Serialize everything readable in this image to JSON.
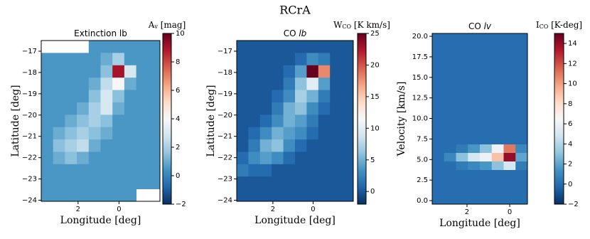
{
  "suptitle": "RCrA",
  "chart_data": [
    {
      "type": "heatmap",
      "title": "Extinction lb",
      "xlabel": "Longitude [deg]",
      "ylabel": "Latitude [deg]",
      "xlim": [
        3.8,
        -2.0
      ],
      "ylim": [
        -24.05,
        -16.5
      ],
      "xticks": [
        2,
        0
      ],
      "yticks": [
        {
          "value": -17,
          "label": "−17"
        },
        {
          "value": -18,
          "label": "−18"
        },
        {
          "value": -19,
          "label": "−19"
        },
        {
          "value": -20,
          "label": "−20"
        },
        {
          "value": -21,
          "label": "−21"
        },
        {
          "value": -22,
          "label": "−22"
        },
        {
          "value": -23,
          "label": "−23"
        },
        {
          "value": -24,
          "label": "−24"
        }
      ],
      "colormap": "RdBu_r",
      "clim": [
        -2,
        10
      ],
      "cticks": [
        {
          "value": -2,
          "label": "−2"
        },
        0,
        2,
        4,
        6,
        8,
        10
      ],
      "clabel": {
        "main": "A",
        "sub": "v",
        "unit": " [mag]"
      },
      "z": [
        [
          null,
          null,
          null,
          null,
          0.5,
          0.5,
          0.5,
          0.5,
          0.5,
          0.5
        ],
        [
          0.5,
          0.5,
          0.5,
          0.5,
          0.5,
          1,
          2,
          0.5,
          0.5,
          0.5
        ],
        [
          0.5,
          0.5,
          0.5,
          0.5,
          0.5,
          1.5,
          9,
          3,
          0.5,
          0.5
        ],
        [
          0.5,
          0.5,
          0.5,
          0.5,
          1,
          2.5,
          4,
          1,
          0.5,
          0.5
        ],
        [
          0.5,
          0.5,
          0.5,
          0.5,
          1.5,
          3,
          1.5,
          0.5,
          0.5,
          0.5
        ],
        [
          0.5,
          0.5,
          0.5,
          1,
          2,
          3,
          1,
          0.5,
          0.5,
          0.5
        ],
        [
          0.5,
          0.5,
          1,
          1.5,
          2,
          1.5,
          0.5,
          0.5,
          0.5,
          0.5
        ],
        [
          0.5,
          1,
          1.5,
          2,
          1.5,
          1,
          0.5,
          0.5,
          0.5,
          0.5
        ],
        [
          0.5,
          1.5,
          2,
          2.5,
          1,
          0.5,
          0.5,
          0.5,
          0.5,
          0.5
        ],
        [
          0.5,
          1,
          1.5,
          1,
          0.5,
          0.5,
          0.5,
          0.5,
          0.5,
          0.5
        ],
        [
          0.5,
          0.5,
          0.5,
          0.5,
          0.5,
          0.5,
          0.5,
          0.5,
          0.5,
          0.5
        ],
        [
          0.5,
          0.5,
          0.5,
          0.5,
          0.5,
          0.5,
          0.5,
          0.5,
          0.5,
          0.5
        ],
        [
          0.5,
          0.5,
          0.5,
          0.5,
          0.5,
          0.5,
          0.5,
          0.5,
          null,
          null
        ]
      ]
    },
    {
      "type": "heatmap",
      "title": "CO ",
      "title_italic": "lb",
      "xlabel": "Longitude [deg]",
      "ylabel": "Latitude [deg]",
      "xlim": [
        3.8,
        -2.0
      ],
      "ylim": [
        -24.05,
        -16.5
      ],
      "xticks": [
        2,
        0
      ],
      "yticks": [
        {
          "value": -17,
          "label": "−17"
        },
        {
          "value": -18,
          "label": "−18"
        },
        {
          "value": -19,
          "label": "−19"
        },
        {
          "value": -20,
          "label": "−20"
        },
        {
          "value": -21,
          "label": "−21"
        },
        {
          "value": -22,
          "label": "−22"
        },
        {
          "value": -23,
          "label": "−23"
        },
        {
          "value": -24,
          "label": "−24"
        }
      ],
      "colormap": "RdBu_r",
      "clim": [
        -2,
        25
      ],
      "cticks": [
        0,
        5,
        10,
        15,
        20,
        25
      ],
      "clabel": {
        "main": "W",
        "sub": "CO",
        "unit": " [K km/s]"
      },
      "z": [
        [
          0,
          0,
          0,
          0,
          0,
          0,
          0,
          0,
          0,
          0
        ],
        [
          0,
          0,
          0,
          0,
          0,
          1,
          3,
          2,
          0,
          0
        ],
        [
          0,
          0,
          0,
          0,
          1,
          4,
          25,
          18,
          0,
          0
        ],
        [
          0,
          0,
          0,
          0,
          2,
          6,
          10,
          4,
          0,
          0
        ],
        [
          0,
          0,
          0,
          1,
          3,
          7,
          5,
          2,
          0,
          0
        ],
        [
          0,
          0,
          0,
          2,
          5,
          6,
          3,
          1,
          0,
          0
        ],
        [
          0,
          0,
          1,
          3,
          5,
          4,
          2,
          0,
          0,
          0
        ],
        [
          0,
          1,
          3,
          5,
          4,
          3,
          1,
          0,
          0,
          0
        ],
        [
          0,
          2,
          5,
          6,
          3,
          1,
          0,
          0,
          0,
          0
        ],
        [
          1,
          3,
          4,
          3,
          1,
          0,
          0,
          0,
          0,
          0
        ],
        [
          2,
          1,
          1,
          0,
          0,
          0,
          0,
          0,
          0,
          0
        ],
        [
          0,
          0,
          0,
          0,
          0,
          0,
          0,
          0,
          0,
          0
        ],
        [
          0,
          0,
          0,
          0,
          0,
          0,
          0,
          0,
          0,
          0
        ]
      ]
    },
    {
      "type": "heatmap",
      "title": "CO ",
      "title_italic": "lv",
      "xlabel": "Longitude [deg]",
      "ylabel": "Velocity [km/s]",
      "xlim": [
        3.63,
        -0.83
      ],
      "ylim": [
        -0.43,
        20.35
      ],
      "xticks": [
        2,
        0
      ],
      "yticks": [
        {
          "value": 0,
          "label": "0.0"
        },
        {
          "value": 2.5,
          "label": "2.5"
        },
        {
          "value": 5,
          "label": "5.0"
        },
        {
          "value": 7.5,
          "label": "7.5"
        },
        {
          "value": 10,
          "label": "10.0"
        },
        {
          "value": 12.5,
          "label": "12.5"
        },
        {
          "value": 15,
          "label": "15.0"
        },
        {
          "value": 17.5,
          "label": "17.5"
        },
        {
          "value": 20,
          "label": "20.0"
        }
      ],
      "colormap": "RdBu_r",
      "clim": [
        -2,
        15
      ],
      "cticks": [
        {
          "value": -2,
          "label": "−2"
        },
        0,
        2,
        4,
        6,
        8,
        10,
        12,
        14
      ],
      "clabel": {
        "main": "I",
        "sub": "CO",
        "unit": " [K-deg]"
      },
      "z": [
        [
          0,
          0,
          0,
          0,
          0,
          0,
          0,
          0
        ],
        [
          0,
          0,
          0,
          0,
          0,
          0,
          0,
          0
        ],
        [
          0,
          0,
          0,
          0,
          0,
          0,
          0,
          0
        ],
        [
          0,
          0,
          0,
          0,
          0,
          0,
          0,
          0
        ],
        [
          0,
          0,
          0,
          0,
          0,
          0,
          0,
          0
        ],
        [
          0,
          0,
          0,
          0,
          0,
          0,
          0,
          0
        ],
        [
          0,
          0,
          0,
          0,
          0,
          0,
          0,
          0
        ],
        [
          0,
          0,
          0,
          0,
          0,
          0,
          0,
          0
        ],
        [
          0,
          0,
          0,
          0,
          0,
          0,
          0,
          0
        ],
        [
          0,
          0,
          0,
          0,
          0,
          0,
          0,
          0
        ],
        [
          0,
          0,
          0,
          0,
          0,
          0,
          0,
          0
        ],
        [
          0,
          0,
          0,
          0,
          0,
          0,
          0,
          0
        ],
        [
          0,
          0,
          0,
          0,
          0,
          0,
          0,
          0
        ],
        [
          0,
          0,
          0.5,
          1.5,
          3,
          6,
          11,
          1
        ],
        [
          0,
          1,
          3,
          5,
          6,
          9,
          14,
          2
        ],
        [
          0,
          0,
          0.5,
          1,
          1.5,
          3,
          5,
          0.5
        ],
        [
          0,
          0,
          0,
          0,
          0,
          0,
          0,
          0
        ],
        [
          0,
          0,
          0,
          0,
          0,
          0,
          0,
          0
        ],
        [
          0,
          0,
          0,
          0,
          0,
          0,
          0,
          0
        ],
        [
          0,
          0,
          0,
          0,
          0,
          0,
          0,
          0
        ]
      ]
    }
  ]
}
